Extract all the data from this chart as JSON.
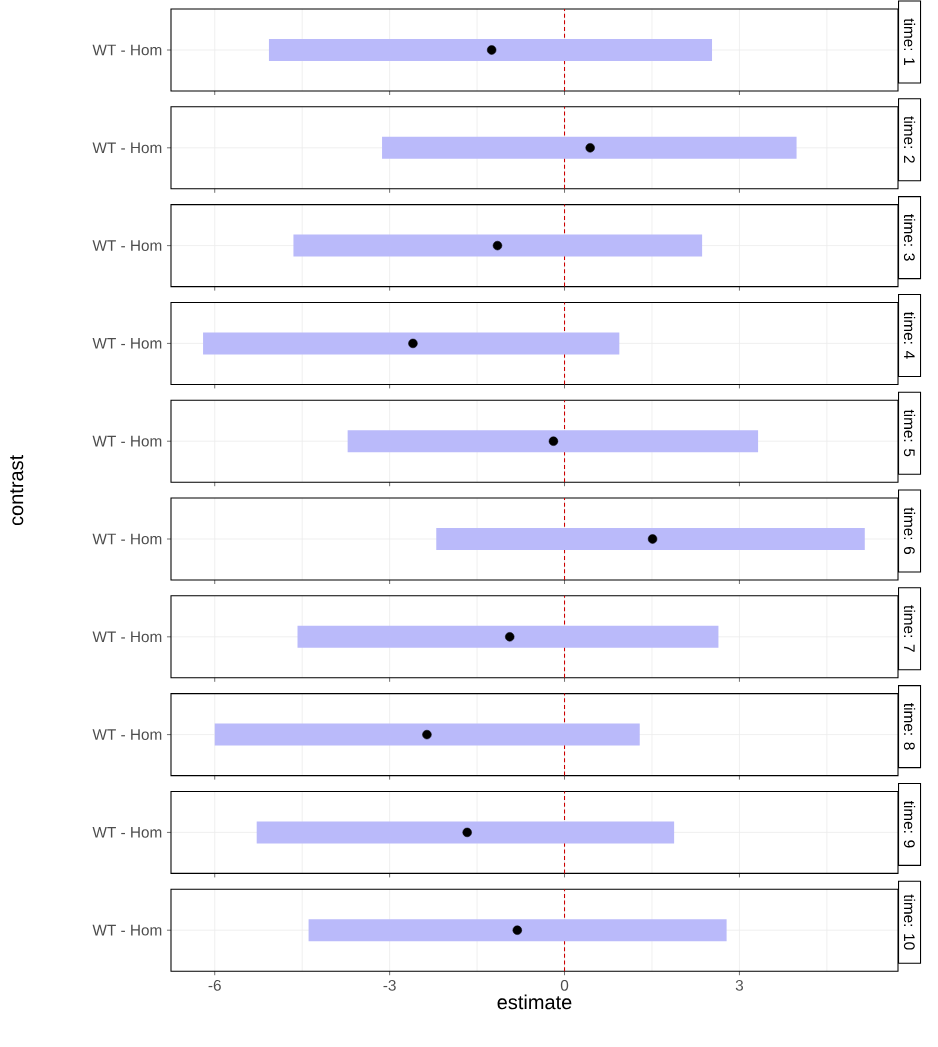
{
  "chart_data": [
    {
      "type": "bar",
      "title": "time: 1",
      "orientation": "horizontal",
      "categories": [
        "WT - Hom"
      ],
      "series": [
        {
          "color": "#babafa",
          "base": [
            -5.07
          ],
          "values": [
            7.6
          ]
        },
        {
          "type": "scatter",
          "color": "#000000",
          "values": [
            -1.25
          ]
        }
      ],
      "marker": "circle",
      "xlim": [
        -6.75,
        5.72
      ],
      "xticks": [
        -6,
        {
          "value": -4.5,
          "label": null
        },
        -3,
        {
          "value": -1.5,
          "label": null
        },
        0,
        {
          "value": 1.5,
          "label": null
        },
        3,
        {
          "value": 4.5,
          "label": null
        }
      ],
      "grid": true,
      "ref_lines": [
        {
          "axis": "x",
          "value": 0,
          "color": "#cc0000",
          "line_style": "dashed"
        }
      ],
      "tick_labels": "y"
    },
    {
      "type": "bar",
      "title": "time: 2",
      "orientation": "horizontal",
      "categories": [
        "WT - Hom"
      ],
      "series": [
        {
          "color": "#babafa",
          "base": [
            -3.13
          ],
          "values": [
            7.11
          ]
        },
        {
          "type": "scatter",
          "color": "#000000",
          "values": [
            0.44
          ]
        }
      ],
      "marker": "circle",
      "xlim": [
        -6.75,
        5.72
      ],
      "xticks": [
        -6,
        {
          "value": -4.5,
          "label": null
        },
        -3,
        {
          "value": -1.5,
          "label": null
        },
        0,
        {
          "value": 1.5,
          "label": null
        },
        3,
        {
          "value": 4.5,
          "label": null
        }
      ],
      "grid": true,
      "ref_lines": [
        {
          "axis": "x",
          "value": 0,
          "color": "#cc0000",
          "line_style": "dashed"
        }
      ],
      "tick_labels": "y"
    },
    {
      "type": "bar",
      "title": "time: 3",
      "orientation": "horizontal",
      "categories": [
        "WT - Hom"
      ],
      "series": [
        {
          "color": "#babafa",
          "base": [
            -4.65
          ],
          "values": [
            7.01
          ]
        },
        {
          "type": "scatter",
          "color": "#000000",
          "values": [
            -1.15
          ]
        }
      ],
      "marker": "circle",
      "xlim": [
        -6.75,
        5.72
      ],
      "xticks": [
        -6,
        {
          "value": -4.5,
          "label": null
        },
        -3,
        {
          "value": -1.5,
          "label": null
        },
        0,
        {
          "value": 1.5,
          "label": null
        },
        3,
        {
          "value": 4.5,
          "label": null
        }
      ],
      "grid": true,
      "ref_lines": [
        {
          "axis": "x",
          "value": 0,
          "color": "#cc0000",
          "line_style": "dashed"
        }
      ],
      "tick_labels": "y"
    },
    {
      "type": "bar",
      "title": "time: 4",
      "orientation": "horizontal",
      "categories": [
        "WT - Hom"
      ],
      "series": [
        {
          "color": "#babafa",
          "base": [
            -6.2
          ],
          "values": [
            7.14
          ]
        },
        {
          "type": "scatter",
          "color": "#000000",
          "values": [
            -2.6
          ]
        }
      ],
      "marker": "circle",
      "xlim": [
        -6.75,
        5.72
      ],
      "xticks": [
        -6,
        {
          "value": -4.5,
          "label": null
        },
        -3,
        {
          "value": -1.5,
          "label": null
        },
        0,
        {
          "value": 1.5,
          "label": null
        },
        3,
        {
          "value": 4.5,
          "label": null
        }
      ],
      "grid": true,
      "ref_lines": [
        {
          "axis": "x",
          "value": 0,
          "color": "#cc0000",
          "line_style": "dashed"
        }
      ],
      "tick_labels": "y"
    },
    {
      "type": "bar",
      "title": "time: 5",
      "orientation": "horizontal",
      "categories": [
        "WT - Hom"
      ],
      "series": [
        {
          "color": "#babafa",
          "base": [
            -3.72
          ],
          "values": [
            7.04
          ]
        },
        {
          "type": "scatter",
          "color": "#000000",
          "values": [
            -0.19
          ]
        }
      ],
      "marker": "circle",
      "xlim": [
        -6.75,
        5.72
      ],
      "xticks": [
        -6,
        {
          "value": -4.5,
          "label": null
        },
        -3,
        {
          "value": -1.5,
          "label": null
        },
        0,
        {
          "value": 1.5,
          "label": null
        },
        3,
        {
          "value": 4.5,
          "label": null
        }
      ],
      "grid": true,
      "ref_lines": [
        {
          "axis": "x",
          "value": 0,
          "color": "#cc0000",
          "line_style": "dashed"
        }
      ],
      "tick_labels": "y",
      "ylabel": "contrast"
    },
    {
      "type": "bar",
      "title": "time: 6",
      "orientation": "horizontal",
      "categories": [
        "WT - Hom"
      ],
      "series": [
        {
          "color": "#babafa",
          "base": [
            -2.2
          ],
          "values": [
            7.35
          ]
        },
        {
          "type": "scatter",
          "color": "#000000",
          "values": [
            1.51
          ]
        }
      ],
      "marker": "circle",
      "xlim": [
        -6.75,
        5.72
      ],
      "xticks": [
        -6,
        {
          "value": -4.5,
          "label": null
        },
        -3,
        {
          "value": -1.5,
          "label": null
        },
        0,
        {
          "value": 1.5,
          "label": null
        },
        3,
        {
          "value": 4.5,
          "label": null
        }
      ],
      "grid": true,
      "ref_lines": [
        {
          "axis": "x",
          "value": 0,
          "color": "#cc0000",
          "line_style": "dashed"
        }
      ],
      "tick_labels": "y"
    },
    {
      "type": "bar",
      "title": "time: 7",
      "orientation": "horizontal",
      "categories": [
        "WT - Hom"
      ],
      "series": [
        {
          "color": "#babafa",
          "base": [
            -4.58
          ],
          "values": [
            7.22
          ]
        },
        {
          "type": "scatter",
          "color": "#000000",
          "values": [
            -0.94
          ]
        }
      ],
      "marker": "circle",
      "xlim": [
        -6.75,
        5.72
      ],
      "xticks": [
        -6,
        {
          "value": -4.5,
          "label": null
        },
        -3,
        {
          "value": -1.5,
          "label": null
        },
        0,
        {
          "value": 1.5,
          "label": null
        },
        3,
        {
          "value": 4.5,
          "label": null
        }
      ],
      "grid": true,
      "ref_lines": [
        {
          "axis": "x",
          "value": 0,
          "color": "#cc0000",
          "line_style": "dashed"
        }
      ],
      "tick_labels": "y"
    },
    {
      "type": "bar",
      "title": "time: 8",
      "orientation": "horizontal",
      "categories": [
        "WT - Hom"
      ],
      "series": [
        {
          "color": "#babafa",
          "base": [
            -6.0
          ],
          "values": [
            7.29
          ]
        },
        {
          "type": "scatter",
          "color": "#000000",
          "values": [
            -2.36
          ]
        }
      ],
      "marker": "circle",
      "xlim": [
        -6.75,
        5.72
      ],
      "xticks": [
        -6,
        {
          "value": -4.5,
          "label": null
        },
        -3,
        {
          "value": -1.5,
          "label": null
        },
        0,
        {
          "value": 1.5,
          "label": null
        },
        3,
        {
          "value": 4.5,
          "label": null
        }
      ],
      "grid": true,
      "ref_lines": [
        {
          "axis": "x",
          "value": 0,
          "color": "#cc0000",
          "line_style": "dashed"
        }
      ],
      "tick_labels": "y"
    },
    {
      "type": "bar",
      "title": "time: 9",
      "orientation": "horizontal",
      "categories": [
        "WT - Hom"
      ],
      "series": [
        {
          "color": "#babafa",
          "base": [
            -5.28
          ],
          "values": [
            7.16
          ]
        },
        {
          "type": "scatter",
          "color": "#000000",
          "values": [
            -1.67
          ]
        }
      ],
      "marker": "circle",
      "xlim": [
        -6.75,
        5.72
      ],
      "xticks": [
        -6,
        {
          "value": -4.5,
          "label": null
        },
        -3,
        {
          "value": -1.5,
          "label": null
        },
        0,
        {
          "value": 1.5,
          "label": null
        },
        3,
        {
          "value": 4.5,
          "label": null
        }
      ],
      "grid": true,
      "ref_lines": [
        {
          "axis": "x",
          "value": 0,
          "color": "#cc0000",
          "line_style": "dashed"
        }
      ],
      "tick_labels": "y"
    },
    {
      "type": "bar",
      "title": "time: 10",
      "orientation": "horizontal",
      "categories": [
        "WT - Hom"
      ],
      "series": [
        {
          "color": "#babafa",
          "base": [
            -4.39
          ],
          "values": [
            7.17
          ]
        },
        {
          "type": "scatter",
          "color": "#000000",
          "values": [
            -0.81
          ]
        }
      ],
      "marker": "circle",
      "xlim": [
        -6.75,
        5.72
      ],
      "xticks": [
        -6,
        {
          "value": -4.5,
          "label": null
        },
        -3,
        {
          "value": -1.5,
          "label": null
        },
        0,
        {
          "value": 1.5,
          "label": null
        },
        3,
        {
          "value": 4.5,
          "label": null
        }
      ],
      "grid": true,
      "ref_lines": [
        {
          "axis": "x",
          "value": 0,
          "color": "#cc0000",
          "line_style": "dashed"
        }
      ],
      "xlabel": "estimate"
    }
  ]
}
